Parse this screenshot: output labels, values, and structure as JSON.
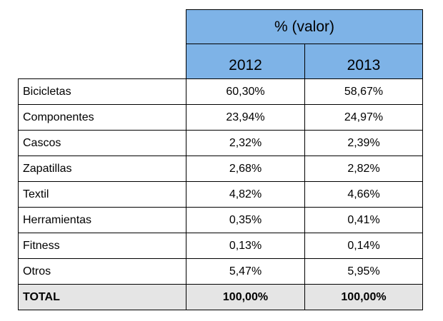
{
  "table": {
    "header_top": "% (valor)",
    "years": [
      "2012",
      "2013"
    ],
    "rows": [
      {
        "label": "Bicicletas",
        "v2012": "60,30%",
        "v2013": "58,67%"
      },
      {
        "label": "Componentes",
        "v2012": "23,94%",
        "v2013": "24,97%"
      },
      {
        "label": "Cascos",
        "v2012": "2,32%",
        "v2013": "2,39%"
      },
      {
        "label": "Zapatillas",
        "v2012": "2,68%",
        "v2013": "2,82%"
      },
      {
        "label": "Textil",
        "v2012": "4,82%",
        "v2013": "4,66%"
      },
      {
        "label": "Herramientas",
        "v2012": "0,35%",
        "v2013": "0,41%"
      },
      {
        "label": "Fitness",
        "v2012": "0,13%",
        "v2013": "0,14%"
      },
      {
        "label": "Otros",
        "v2012": "5,47%",
        "v2013": "5,95%"
      }
    ],
    "total": {
      "label": "TOTAL",
      "v2012": "100,00%",
      "v2013": "100,00%"
    }
  },
  "colors": {
    "header_fill": "#7eb3e7",
    "total_fill": "#e5e5e5",
    "border": "#000000"
  }
}
